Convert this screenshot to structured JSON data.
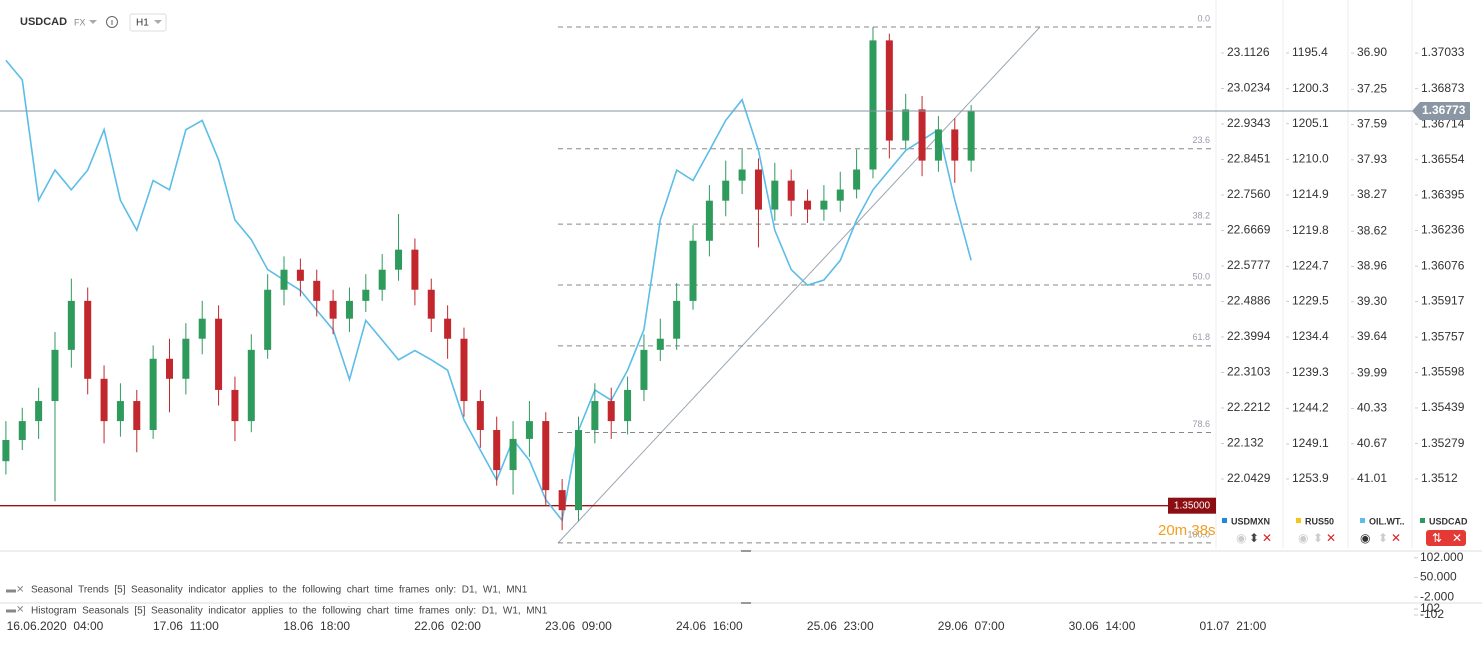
{
  "header": {
    "symbol": "USDCAD",
    "market": "FX",
    "timeframe": "H1"
  },
  "chart_data": {
    "type": "candlestick",
    "categories": [
      null,
      null,
      null,
      "16.06.2020  04:00",
      null,
      null,
      null,
      null,
      null,
      null,
      null,
      "17.06  11:00",
      null,
      null,
      null,
      null,
      null,
      null,
      null,
      "18.06  18:00",
      null,
      null,
      null,
      null,
      null,
      null,
      null,
      "22.06  02:00",
      null,
      null,
      null,
      null,
      null,
      null,
      null,
      "23.06  09:00",
      null,
      null,
      null,
      null,
      null,
      null,
      null,
      "24.06  16:00",
      null,
      null,
      null,
      null,
      null,
      null,
      null,
      "25.06  23:00",
      null,
      null,
      null,
      null,
      null,
      null,
      null,
      "29.06  07:00",
      null,
      null,
      null,
      null,
      null,
      null,
      null,
      "30.06  14:00",
      null,
      null,
      null,
      null,
      null,
      null,
      null,
      "01.07  21:00",
      null
    ],
    "series": [
      {
        "up_color": "#2e9a5c",
        "down_color": "#c1272d",
        "open": [
          1.352,
          1.35295,
          1.3538,
          1.3547,
          1.357,
          1.3592,
          1.3557,
          1.3538,
          1.3547,
          1.3534,
          1.3566,
          1.3557,
          1.3575,
          1.3584,
          1.3552,
          1.3538,
          1.357,
          1.3597,
          1.3606,
          1.3601,
          1.3592,
          1.3584,
          1.3592,
          1.3597,
          1.3606,
          1.3615,
          1.3597,
          1.3584,
          1.3575,
          1.3547,
          1.3534,
          1.3516,
          1.353,
          1.3538,
          1.3507,
          1.3498,
          1.3534,
          1.3547,
          1.3538,
          1.3552,
          1.357,
          1.3575,
          1.3592,
          1.3619,
          1.3637,
          1.3646,
          1.3651,
          1.3633,
          1.3646,
          1.3637,
          1.3633,
          1.3637,
          1.3642,
          1.3651,
          1.3709,
          1.3664,
          1.3678,
          1.3655,
          1.3669,
          1.3655,
          null,
          null,
          null,
          null,
          null,
          null,
          null,
          null,
          null,
          null,
          null,
          null,
          null,
          null,
          null,
          null,
          null
        ],
        "high": [
          1.3538,
          1.3544,
          1.3553,
          1.3578,
          1.3602,
          1.3598,
          1.3563,
          1.3555,
          1.3552,
          1.3572,
          1.3575,
          1.3582,
          1.3592,
          1.359,
          1.3558,
          1.3577,
          1.3604,
          1.3612,
          1.3611,
          1.3606,
          1.3597,
          1.3598,
          1.3604,
          1.3613,
          1.3631,
          1.362,
          1.3602,
          1.359,
          1.358,
          1.3552,
          1.354,
          1.3538,
          1.3547,
          1.3542,
          1.3512,
          1.354,
          1.3555,
          1.3553,
          1.3558,
          1.3577,
          1.3584,
          1.36,
          1.3626,
          1.3644,
          1.3655,
          1.366,
          1.3656,
          1.3654,
          1.3651,
          1.3642,
          1.3644,
          1.365,
          1.366,
          1.3715,
          1.3712,
          1.3685,
          1.3684,
          1.3675,
          1.3674,
          1.368,
          null,
          null,
          null,
          null,
          null,
          null,
          null,
          null,
          null,
          null,
          null,
          null,
          null,
          null,
          null,
          null,
          null
        ],
        "low": [
          1.3514,
          1.3525,
          1.353,
          1.3502,
          1.3562,
          1.355,
          1.3528,
          1.3531,
          1.3524,
          1.353,
          1.3542,
          1.355,
          1.3568,
          1.3545,
          1.3529,
          1.3533,
          1.3566,
          1.359,
          1.3594,
          1.3585,
          1.3577,
          1.3578,
          1.3587,
          1.3592,
          1.3601,
          1.359,
          1.3578,
          1.3566,
          1.354,
          1.3526,
          1.3509,
          1.3505,
          1.3522,
          1.35,
          1.3489,
          1.3493,
          1.3528,
          1.353,
          1.3532,
          1.3547,
          1.3565,
          1.357,
          1.3588,
          1.3612,
          1.363,
          1.364,
          1.3616,
          1.3628,
          1.363,
          1.3627,
          1.3628,
          1.3632,
          1.3638,
          1.3647,
          1.3656,
          1.366,
          1.3648,
          1.365,
          1.3645,
          1.365,
          null,
          null,
          null,
          null,
          null,
          null,
          null,
          null,
          null,
          null,
          null,
          null,
          null,
          null,
          null,
          null,
          null
        ],
        "close": [
          1.35295,
          1.3538,
          1.3547,
          1.357,
          1.3592,
          1.3557,
          1.3538,
          1.3547,
          1.3534,
          1.3566,
          1.3557,
          1.3575,
          1.3584,
          1.3552,
          1.3538,
          1.357,
          1.3597,
          1.3606,
          1.3601,
          1.3592,
          1.3584,
          1.3592,
          1.3597,
          1.3606,
          1.3615,
          1.3597,
          1.3584,
          1.3575,
          1.3547,
          1.3534,
          1.3516,
          1.353,
          1.3538,
          1.3507,
          1.3498,
          1.3534,
          1.3547,
          1.3538,
          1.3552,
          1.357,
          1.3575,
          1.3592,
          1.3619,
          1.3637,
          1.3646,
          1.3651,
          1.3633,
          1.3646,
          1.3637,
          1.3633,
          1.3637,
          1.3642,
          1.3651,
          1.3709,
          1.3664,
          1.3678,
          1.3655,
          1.3669,
          1.3655,
          1.36773,
          null,
          null,
          null,
          null,
          null,
          null,
          null,
          null,
          null,
          null,
          null,
          null,
          null,
          null,
          null,
          null,
          null
        ]
      },
      {
        "axis": "y2",
        "color": "#5bbde8",
        "values": [
          36.97,
          37.16,
          38.32,
          38.03,
          38.22,
          38.03,
          37.64,
          38.32,
          38.61,
          38.13,
          38.22,
          37.64,
          37.55,
          37.93,
          38.51,
          38.7,
          38.99,
          39.09,
          39.19,
          39.38,
          39.57,
          40.05,
          39.48,
          39.67,
          39.86,
          39.77,
          39.86,
          39.96,
          40.44,
          40.73,
          41.02,
          40.63,
          40.83,
          41.21,
          41.41,
          40.54,
          40.15,
          40.25,
          39.96,
          39.57,
          38.51,
          38.03,
          38.13,
          37.84,
          37.55,
          37.35,
          37.84,
          38.61,
          38.99,
          39.14,
          39.09,
          38.9,
          38.51,
          38.22,
          38.03,
          37.84,
          37.74,
          37.64,
          38.32,
          38.9,
          null,
          null,
          null,
          null,
          null,
          null,
          null,
          null,
          null,
          null,
          null,
          null,
          null,
          null,
          null,
          null,
          null
        ]
      }
    ],
    "ylim": [
      1.37204,
      1.3481
    ],
    "yticks": [
      1.37033,
      1.36873,
      1.36714,
      1.36554,
      1.36395,
      1.36236,
      1.36076,
      1.35917,
      1.35757,
      1.35598,
      1.35439,
      1.35279,
      1.3512
    ],
    "y2lim": [
      36.533,
      41.676
    ],
    "y2ticks": [
      {
        "value": 36.9,
        "label": "36.90"
      },
      37.25,
      37.59,
      37.93,
      38.27,
      38.62,
      38.96,
      {
        "value": 39.3,
        "label": "39.30"
      },
      39.64,
      39.99,
      40.33,
      40.67,
      41.01
    ],
    "axes": [
      {
        "lim": [
          23.208,
          21.8696
        ],
        "ticks": [
          23.1126,
          23.0234,
          22.9343,
          22.8451,
          {
            "value": 22.756,
            "label": "22.7560"
          },
          22.6669,
          22.5777,
          22.4886,
          22.3994,
          22.3103,
          22.2212,
          22.132,
          {
            "value": 22.0429,
            "label": "22.0429"
          }
        ]
      },
      {
        "lim": [
          1190.18,
          1263.38
        ],
        "ticks": [
          1195.4,
          1200.3,
          1205.1,
          {
            "value": 1210,
            "label": "1210.0"
          },
          1214.9,
          1219.8,
          1224.7,
          1229.5,
          1234.4,
          1239.3,
          1244.2,
          1249.1,
          1253.9
        ]
      }
    ],
    "fibonacci": {
      "high": 1.3715,
      "low": 1.34833,
      "levels": [
        {
          "value": 0,
          "label": "0.0"
        },
        23.6,
        38.2,
        {
          "value": 50,
          "label": "50.0"
        },
        61.8,
        78.6,
        {
          "value": 100,
          "label": "100.0"
        }
      ]
    },
    "last_price": 1.36773,
    "level_line": {
      "value": 1.35,
      "label": "1.35000"
    },
    "countdown": "20m 38s"
  },
  "legend": [
    {
      "label": "USDMXN",
      "color": "#1e88e5"
    },
    {
      "label": "RUS50",
      "color": "#f5c518"
    },
    {
      "label": "OIL.WT..",
      "color": "#5bbde8"
    },
    {
      "label": "USDCAD",
      "color": "#2e9a5c"
    }
  ],
  "indicator_panels": [
    {
      "text": "Seasonal  Trends  [5]  Seasonality  indicator  applies  to  the  following  chart  time  frames  only:  D1,  W1,  MN1",
      "lim": [
        120,
        -17.6
      ],
      "ticks": [
        {
          "value": 102,
          "label": "102.000"
        },
        {
          "value": 50,
          "label": "50.000"
        },
        {
          "value": -2,
          "label": "-2.000"
        }
      ]
    },
    {
      "text": "Histogram  Seasonals  [5]  Seasonality  indicator  applies  to  the  following  chart  time  frames  only:  D1,  W1,  MN1",
      "lim": [
        306,
        -170
      ],
      "ticks": [
        102,
        -102
      ]
    }
  ]
}
